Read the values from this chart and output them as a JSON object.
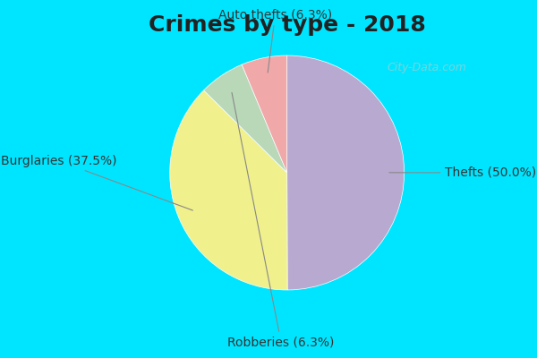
{
  "title": "Crimes by type - 2018",
  "slices": [
    {
      "label": "Thefts (50.0%)",
      "value": 50.0,
      "color": "#b8a9d0"
    },
    {
      "label": "Burglaries (37.5%)",
      "value": 37.5,
      "color": "#f0f08c"
    },
    {
      "label": "Robberies (6.3%)",
      "value": 6.3,
      "color": "#b8d8b8"
    },
    {
      "label": "Auto thefts (6.3%)",
      "value": 6.3,
      "color": "#f0a8a8"
    }
  ],
  "background_top": "#00e5ff",
  "background_inner": "#d8ede8",
  "title_fontsize": 18,
  "label_fontsize": 10,
  "startangle": 90,
  "watermark": "City-Data.com"
}
